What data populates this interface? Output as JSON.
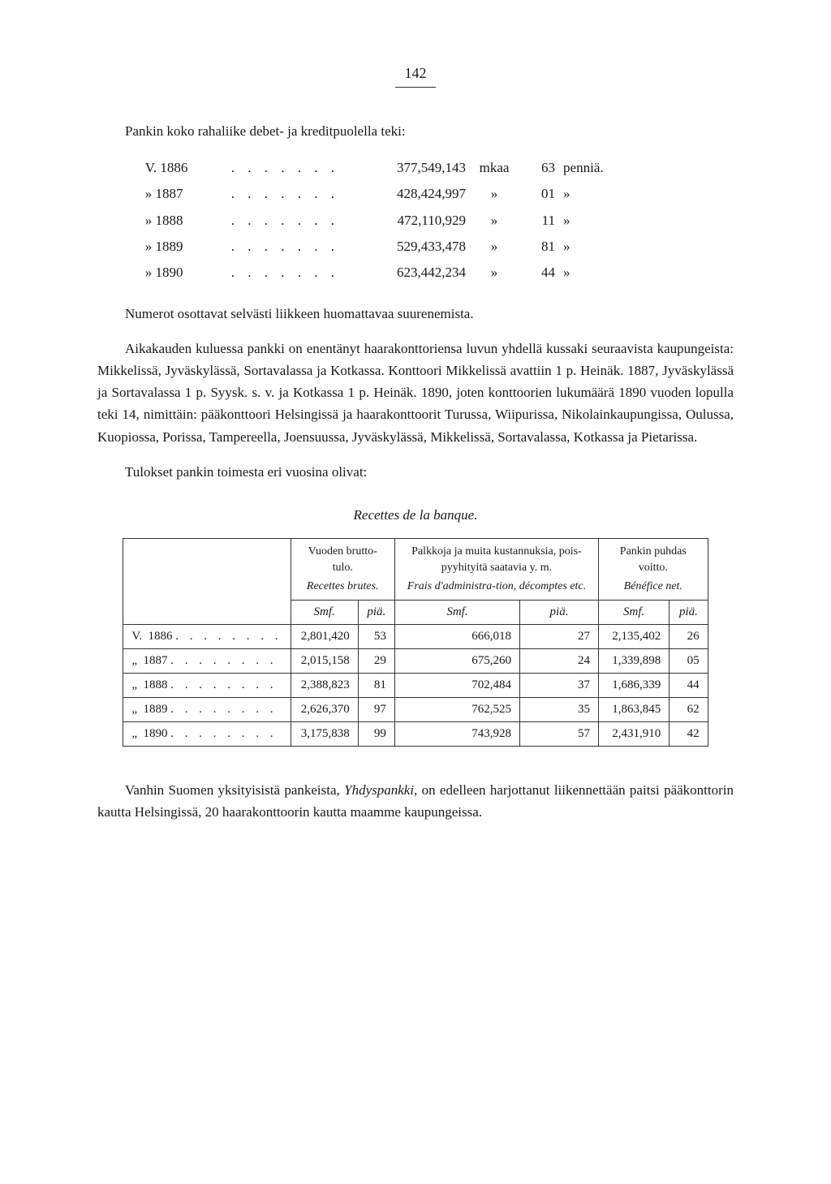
{
  "page_number": "142",
  "intro_line": "Pankin koko rahaliike debet- ja kreditpuolella teki:",
  "ledger": {
    "rows": [
      {
        "year_prefix": "V.",
        "year": "1886",
        "amount": "377,549,143",
        "unit1": "mkaa",
        "penni": "63",
        "unit2": "penniä."
      },
      {
        "year_prefix": "»",
        "year": "1887",
        "amount": "428,424,997",
        "unit1": "»",
        "penni": "01",
        "unit2": "»"
      },
      {
        "year_prefix": "»",
        "year": "1888",
        "amount": "472,110,929",
        "unit1": "»",
        "penni": "11",
        "unit2": "»"
      },
      {
        "year_prefix": "»",
        "year": "1889",
        "amount": "529,433,478",
        "unit1": "»",
        "penni": "81",
        "unit2": "»"
      },
      {
        "year_prefix": "»",
        "year": "1890",
        "amount": "623,442,234",
        "unit1": "»",
        "penni": "44",
        "unit2": "»"
      }
    ],
    "dots": ". . . . . . ."
  },
  "para1": "Numerot osottavat selvästi liikkeen huomattavaa suurenemista.",
  "para2": "Aikakauden kuluessa pankki on enentänyt haarakonttoriensa luvun yhdellä kussaki seuraavista kaupungeista: Mikkelissä, Jyväskylässä, Sortavalassa ja Kotkassa. Konttoori Mikkelissä avattiin 1 p. Heinäk. 1887, Jyväskylässä ja Sortavalassa 1 p. Syysk. s. v. ja Kotkassa 1 p. Heinäk. 1890, joten konttoorien lukumäärä 1890 vuoden lopulla teki 14, nimittäin: pääkonttoori Helsingissä ja haarakonttoorit Turussa, Wiipurissa, Nikolainkaupungissa, Oulussa, Kuopiossa, Porissa, Tampereella, Joensuussa, Jyväskylässä, Mikkelissä, Sortavalassa, Kotkassa ja Pietarissa.",
  "para3": "Tulokset pankin toimesta eri vuosina olivat:",
  "table": {
    "caption": "Recettes de la banque.",
    "headers": {
      "col1_fi": "Vuoden brutto-tulo.",
      "col1_fr": "Recettes brutes.",
      "col2_fi": "Palkkoja ja muita kustannuksia, pois-pyyhityitä saatavia y. m.",
      "col2_fr": "Frais d'administra-tion, décomptes etc.",
      "col3_fi": "Pankin puhdas voitto.",
      "col3_fr": "Bénéfice net.",
      "unit_main": "Smf.",
      "unit_sub": "piä."
    },
    "rows": [
      {
        "label_prefix": "V.",
        "year": "1886",
        "a1": "2,801,420",
        "a2": "53",
        "b1": "666,018",
        "b2": "27",
        "c1": "2,135,402",
        "c2": "26"
      },
      {
        "label_prefix": "„",
        "year": "1887",
        "a1": "2,015,158",
        "a2": "29",
        "b1": "675,260",
        "b2": "24",
        "c1": "1,339,898",
        "c2": "05"
      },
      {
        "label_prefix": "„",
        "year": "1888",
        "a1": "2,388,823",
        "a2": "81",
        "b1": "702,484",
        "b2": "37",
        "c1": "1,686,339",
        "c2": "44"
      },
      {
        "label_prefix": "„",
        "year": "1889",
        "a1": "2,626,370",
        "a2": "97",
        "b1": "762,525",
        "b2": "35",
        "c1": "1,863,845",
        "c2": "62"
      },
      {
        "label_prefix": "„",
        "year": "1890",
        "a1": "3,175,838",
        "a2": "99",
        "b1": "743,928",
        "b2": "57",
        "c1": "2,431,910",
        "c2": "42"
      }
    ],
    "row_dots": ". . . . . . . ."
  },
  "footer_para_before": "Vanhin Suomen yksityisistä pankeista, ",
  "footer_para_em": "Yhdyspankki",
  "footer_para_after": ", on edelleen harjottanut liikennettään paitsi pääkonttorin kautta Helsingissä, 20 haarakonttoorin kautta maamme kaupungeissa."
}
